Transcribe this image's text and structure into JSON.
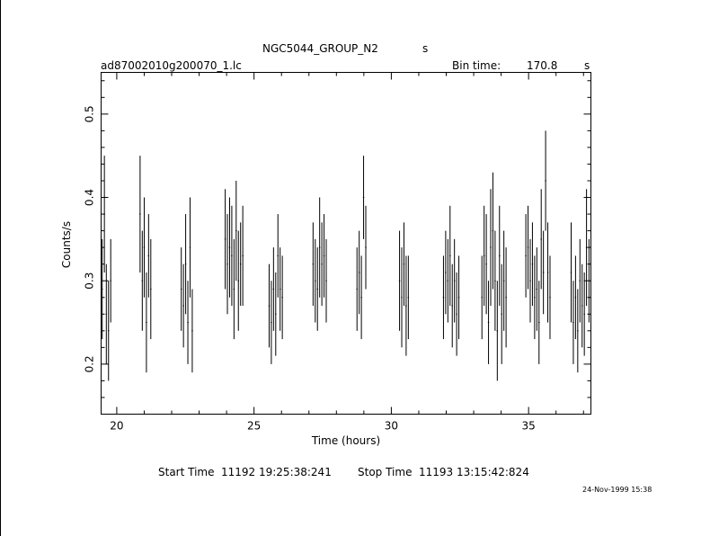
{
  "header": {
    "title": "NGC5044_GROUP_N2",
    "title_unit": "s",
    "file": "ad87002010g200070_1.lc",
    "bin_label": "Bin time:",
    "bin_value": "170.8",
    "bin_unit": "s"
  },
  "footer": {
    "start_label": "Start Time",
    "start_value": "11192 19:25:38:241",
    "stop_label": "Stop Time",
    "stop_value": "11193 13:15:42:824",
    "date_stamp": "24-Nov-1999 15:38"
  },
  "chart_data": {
    "type": "scatter",
    "xlabel": "Time (hours)",
    "ylabel": "Counts/s",
    "xlim": [
      19.43,
      37.27
    ],
    "ylim": [
      0.14,
      0.55
    ],
    "xticks": [
      20,
      25,
      30,
      35
    ],
    "yticks": [
      0.2,
      0.3,
      0.4,
      0.5
    ],
    "x_tick_labels": [
      "20",
      "25",
      "30",
      "35"
    ],
    "y_tick_labels": [
      "0.2",
      "0.3",
      "0.4",
      "0.5"
    ],
    "grid": false,
    "series": [
      {
        "x": [
          19.47,
          19.55,
          19.62,
          19.7,
          19.78,
          20.85,
          20.93,
          21.0,
          21.08,
          21.16,
          21.24,
          22.35,
          22.43,
          22.51,
          22.59,
          22.67,
          22.75,
          23.95,
          24.03,
          24.11,
          24.19,
          24.27,
          24.35,
          24.43,
          24.51,
          24.59,
          25.55,
          25.63,
          25.71,
          25.79,
          25.87,
          25.95,
          26.03,
          27.15,
          27.23,
          27.31,
          27.39,
          27.47,
          27.55,
          27.63,
          28.75,
          28.83,
          28.91,
          28.99,
          29.07,
          30.3,
          30.38,
          30.46,
          30.54,
          30.62,
          31.9,
          31.98,
          32.06,
          32.14,
          32.22,
          32.3,
          32.38,
          32.46,
          33.3,
          33.38,
          33.46,
          33.54,
          33.62,
          33.7,
          33.78,
          33.86,
          33.94,
          34.02,
          34.1,
          34.18,
          34.9,
          34.98,
          35.06,
          35.14,
          35.22,
          35.3,
          35.38,
          35.46,
          35.54,
          35.62,
          35.7,
          35.78,
          36.55,
          36.63,
          36.71,
          36.79,
          36.87,
          36.95,
          37.03,
          37.11,
          37.2
        ],
        "y": [
          0.29,
          0.38,
          0.26,
          0.24,
          0.3,
          0.38,
          0.3,
          0.34,
          0.25,
          0.33,
          0.29,
          0.29,
          0.27,
          0.32,
          0.25,
          0.34,
          0.24,
          0.35,
          0.32,
          0.34,
          0.33,
          0.29,
          0.36,
          0.3,
          0.32,
          0.33,
          0.27,
          0.25,
          0.29,
          0.26,
          0.33,
          0.29,
          0.28,
          0.32,
          0.3,
          0.29,
          0.34,
          0.32,
          0.33,
          0.3,
          0.29,
          0.31,
          0.28,
          0.4,
          0.34,
          0.3,
          0.28,
          0.32,
          0.27,
          0.28,
          0.28,
          0.31,
          0.3,
          0.33,
          0.27,
          0.3,
          0.26,
          0.28,
          0.28,
          0.33,
          0.32,
          0.25,
          0.34,
          0.36,
          0.3,
          0.24,
          0.33,
          0.26,
          0.3,
          0.28,
          0.33,
          0.34,
          0.3,
          0.32,
          0.28,
          0.29,
          0.25,
          0.35,
          0.31,
          0.42,
          0.31,
          0.28,
          0.31,
          0.25,
          0.28,
          0.24,
          0.3,
          0.27,
          0.26,
          0.34,
          0.3
        ],
        "err": [
          0.06,
          0.07,
          0.06,
          0.06,
          0.05,
          0.07,
          0.06,
          0.06,
          0.06,
          0.05,
          0.06,
          0.05,
          0.05,
          0.06,
          0.05,
          0.06,
          0.05,
          0.06,
          0.06,
          0.06,
          0.06,
          0.06,
          0.06,
          0.06,
          0.05,
          0.06,
          0.05,
          0.05,
          0.05,
          0.05,
          0.05,
          0.05,
          0.05,
          0.05,
          0.05,
          0.05,
          0.06,
          0.05,
          0.05,
          0.05,
          0.05,
          0.05,
          0.05,
          0.05,
          0.05,
          0.06,
          0.06,
          0.05,
          0.06,
          0.05,
          0.05,
          0.05,
          0.05,
          0.06,
          0.05,
          0.05,
          0.05,
          0.05,
          0.05,
          0.06,
          0.06,
          0.05,
          0.07,
          0.07,
          0.06,
          0.06,
          0.06,
          0.06,
          0.06,
          0.06,
          0.05,
          0.05,
          0.05,
          0.05,
          0.05,
          0.05,
          0.05,
          0.06,
          0.05,
          0.06,
          0.06,
          0.05,
          0.06,
          0.05,
          0.05,
          0.05,
          0.05,
          0.05,
          0.05,
          0.07,
          0.05
        ],
        "dx": 0.024
      }
    ]
  }
}
